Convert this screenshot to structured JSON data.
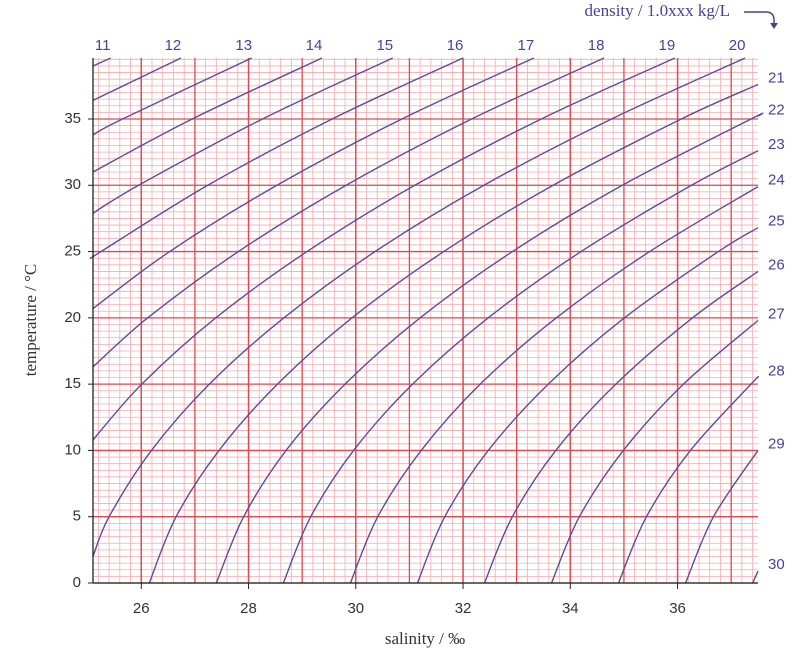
{
  "chart_data": {
    "type": "contour",
    "title": "density / 1.0xxx kg/L",
    "x_label": "salinity / ‰",
    "y_label": "temperature / °C",
    "xlim": [
      25.1,
      37.5
    ],
    "ylim": [
      0,
      39.6
    ],
    "xticks": [
      26,
      28,
      30,
      32,
      34,
      36
    ],
    "yticks": [
      0,
      5,
      10,
      15,
      20,
      25,
      30,
      35
    ],
    "grid": true,
    "x_major_step": 1,
    "x_minor_step": 0.2,
    "y_minor_step": 0.5,
    "grid_color": "#e2474f",
    "minor_grid_color": "#f6aab0",
    "color": "#5a4d9e",
    "series": [
      {
        "name": "11",
        "x": [
          25.1,
          25.43
        ],
        "values": [
          39.0,
          39.6
        ]
      },
      {
        "name": "12",
        "x": [
          25.1,
          26.74
        ],
        "values": [
          36.4,
          39.6
        ]
      },
      {
        "name": "13",
        "x": [
          25.1,
          25.65,
          28.06
        ],
        "values": [
          33.8,
          35,
          39.6
        ]
      },
      {
        "name": "14",
        "x": [
          25.1,
          26.95,
          29.37
        ],
        "values": [
          31.0,
          35,
          39.6
        ]
      },
      {
        "name": "15",
        "x": [
          25.1,
          25.95,
          28.26,
          30.69
        ],
        "values": [
          27.9,
          30,
          35,
          39.6
        ]
      },
      {
        "name": "16",
        "x": [
          25.1,
          25.25,
          27.24,
          29.56,
          32.0
        ],
        "values": [
          24.6,
          25,
          30,
          35,
          39.6
        ]
      },
      {
        "name": "17",
        "x": [
          25.1,
          26.53,
          28.53,
          30.86,
          33.32
        ],
        "values": [
          20.7,
          25,
          30,
          35,
          39.6
        ]
      },
      {
        "name": "18",
        "x": [
          25.1,
          26.12,
          27.81,
          29.82,
          32.16,
          34.63
        ],
        "values": [
          16.3,
          20,
          25,
          30,
          35,
          39.6
        ]
      },
      {
        "name": "19",
        "x": [
          25.1,
          26.01,
          27.39,
          29.09,
          31.1,
          33.46,
          35.95
        ],
        "values": [
          10.8,
          15,
          20,
          25,
          30,
          35,
          39.6
        ]
      },
      {
        "name": "20",
        "x": [
          25.1,
          25.4,
          26.19,
          27.27,
          28.66,
          30.36,
          32.39,
          34.77,
          37.26
        ],
        "values": [
          2.0,
          5,
          10,
          15,
          20,
          25,
          30,
          35,
          39.6
        ]
      },
      {
        "name": "21",
        "x": [
          26.15,
          26.65,
          27.45,
          28.54,
          29.93,
          31.64,
          33.68,
          36.07,
          37.5
        ],
        "values": [
          0,
          5,
          10,
          15,
          20,
          25,
          30,
          35,
          37.6
        ]
      },
      {
        "name": "22",
        "x": [
          27.4,
          27.91,
          28.7,
          29.8,
          31.2,
          32.92,
          34.97,
          37.37,
          37.5
        ],
        "values": [
          0,
          5,
          10,
          15,
          20,
          25,
          30,
          35,
          35.2
        ]
      },
      {
        "name": "23",
        "x": [
          28.65,
          29.16,
          29.96,
          31.06,
          32.47,
          34.2,
          36.26,
          37.5
        ],
        "values": [
          0,
          5,
          10,
          15,
          20,
          25,
          30,
          32.6
        ]
      },
      {
        "name": "24",
        "x": [
          29.9,
          30.41,
          31.22,
          32.32,
          33.74,
          35.48,
          37.5
        ],
        "values": [
          0,
          5,
          10,
          15,
          20,
          25,
          29.9
        ]
      },
      {
        "name": "25",
        "x": [
          31.15,
          31.66,
          32.47,
          33.59,
          35.01,
          36.76,
          37.5
        ],
        "values": [
          0,
          5,
          10,
          15,
          20,
          25,
          26.8
        ]
      },
      {
        "name": "26",
        "x": [
          32.4,
          32.92,
          33.73,
          34.85,
          36.28,
          37.5
        ],
        "values": [
          0,
          5,
          10,
          15,
          20,
          23.5
        ]
      },
      {
        "name": "27",
        "x": [
          33.65,
          34.17,
          34.99,
          36.11,
          37.5
        ],
        "values": [
          0,
          5,
          10,
          15,
          19.8
        ]
      },
      {
        "name": "28",
        "x": [
          34.9,
          35.42,
          36.24,
          37.37,
          37.5
        ],
        "values": [
          0,
          5,
          10,
          15,
          15.5
        ]
      },
      {
        "name": "29",
        "x": [
          36.15,
          36.67,
          37.5
        ],
        "values": [
          0,
          5,
          10
        ]
      },
      {
        "name": "30",
        "x": [
          37.4,
          37.5
        ],
        "values": [
          0,
          0.9
        ]
      }
    ]
  }
}
